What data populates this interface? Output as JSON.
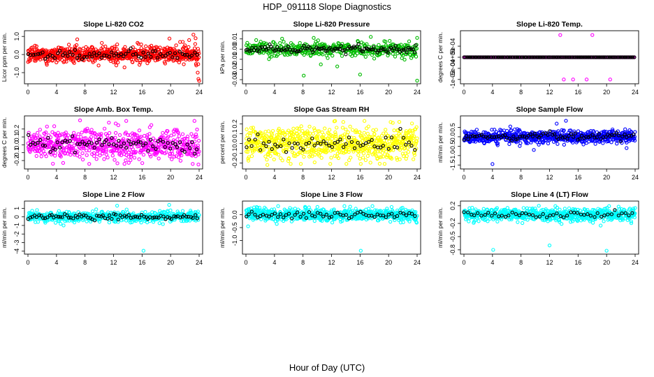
{
  "figure": {
    "title": "HDP_091118  Slope Diagnostics",
    "xlabel": "Hour of Day (UTC)"
  },
  "colors": {
    "overlay": "#000000"
  },
  "chart_data": [
    {
      "type": "scatter",
      "title": "Slope Li-820 CO2",
      "ylabel": "Licor ppm per min.",
      "color": "#ff0000",
      "xlim": [
        0,
        24
      ],
      "ylim": [
        -1.5,
        1.2
      ],
      "xticks": [
        0,
        4,
        8,
        12,
        16,
        20,
        24
      ],
      "yticks": [
        -1.0,
        0.0,
        1.0
      ],
      "ytick_labels": [
        "-1.0",
        "0.0",
        "1.0"
      ],
      "noise": {
        "sd": 0.22,
        "n": 700,
        "overlay_n": 70
      },
      "outliers": [
        [
          23.2,
          1.1
        ],
        [
          23.5,
          0.9
        ],
        [
          23.8,
          -1.0
        ],
        [
          23.9,
          -1.35
        ],
        [
          24.0,
          -1.45
        ],
        [
          23.6,
          -0.6
        ],
        [
          22.6,
          0.8
        ],
        [
          21.7,
          0.7
        ]
      ]
    },
    {
      "type": "scatter",
      "title": "Slope Li-820 Pressure",
      "ylabel": "kPa per min.",
      "color": "#00bb00",
      "xlim": [
        0,
        24
      ],
      "ylim": [
        -0.032,
        0.016
      ],
      "xticks": [
        0,
        4,
        8,
        12,
        16,
        20,
        24
      ],
      "yticks": [
        -0.03,
        -0.02,
        -0.01,
        0.0,
        0.01
      ],
      "ytick_labels": [
        "-0.03",
        "-0.02",
        "-0.01",
        "0.00",
        "0.01"
      ],
      "noise": {
        "sd": 0.0035,
        "n": 420,
        "overlay_n": 110
      },
      "outliers": [
        [
          8.1,
          -0.026
        ],
        [
          16.0,
          -0.025
        ],
        [
          24.0,
          -0.031
        ],
        [
          24.0,
          0.011
        ],
        [
          10.5,
          -0.015
        ],
        [
          12.8,
          -0.017
        ],
        [
          17.5,
          0.012
        ],
        [
          9.5,
          0.011
        ]
      ]
    },
    {
      "type": "scatter",
      "title": "Slope Li-820 Temp.",
      "ylabel": "degrees C per min.",
      "color": "#ff00ff",
      "xlim": [
        0,
        24
      ],
      "ylim": [
        -0.0011,
        0.0011
      ],
      "xticks": [
        0,
        4,
        8,
        12,
        16,
        20,
        24
      ],
      "yticks": [
        -0.001,
        -0.0005,
        0,
        0.0005
      ],
      "ytick_labels": [
        "-1e-03",
        "-5e-04",
        "0e+00",
        "5e-04"
      ],
      "noise": {
        "sd": 0.0,
        "n": 180,
        "overlay_n": 150
      },
      "outliers": [
        [
          13.5,
          0.001
        ],
        [
          18.0,
          0.001
        ],
        [
          14.0,
          -0.001
        ],
        [
          15.3,
          -0.001
        ],
        [
          20.5,
          -0.001
        ],
        [
          17.2,
          -0.001
        ]
      ]
    },
    {
      "type": "scatter",
      "title": "Slope Amb. Box Temp.",
      "ylabel": "degrees C per min.",
      "color": "#ff00ff",
      "xlim": [
        0,
        24
      ],
      "ylim": [
        -0.28,
        0.34
      ],
      "xticks": [
        0,
        4,
        8,
        12,
        16,
        20,
        24
      ],
      "yticks": [
        -0.2,
        -0.1,
        0.0,
        0.1,
        0.2
      ],
      "ytick_labels": [
        "-0.2",
        "-0.1",
        "0.0",
        "0.1",
        "0.2"
      ],
      "noise": {
        "sd": 0.09,
        "n": 650,
        "overlay_n": 70
      },
      "outliers": [
        [
          7.3,
          0.31
        ],
        [
          12.3,
          0.27
        ],
        [
          23.9,
          -0.25
        ],
        [
          3.5,
          -0.24
        ],
        [
          17.3,
          0.25
        ]
      ]
    },
    {
      "type": "scatter",
      "title": "Slope Gas Stream RH",
      "ylabel": "percent per min.",
      "color": "#ffff00",
      "xlim": [
        0,
        24
      ],
      "ylim": [
        -0.24,
        0.26
      ],
      "xticks": [
        0,
        4,
        8,
        12,
        16,
        20,
        24
      ],
      "yticks": [
        -0.2,
        -0.1,
        0.0,
        0.1,
        0.2
      ],
      "ytick_labels": [
        "-0.2",
        "-0.1",
        "0.0",
        "0.1",
        "0.2"
      ],
      "noise": {
        "sd": 0.085,
        "n": 700,
        "overlay_n": 60
      },
      "outliers": [
        [
          12.5,
          0.23
        ],
        [
          3.0,
          -0.22
        ],
        [
          16.1,
          -0.21
        ],
        [
          21.5,
          0.22
        ]
      ]
    },
    {
      "type": "scatter",
      "title": "Slope Sample Flow",
      "ylabel": "ml/min per min.",
      "color": "#0000ff",
      "xlim": [
        0,
        24
      ],
      "ylim": [
        -1.6,
        1.0
      ],
      "xticks": [
        0,
        4,
        8,
        12,
        16,
        20,
        24
      ],
      "yticks": [
        -1.5,
        -1.0,
        -0.5,
        0.0,
        0.5
      ],
      "ytick_labels": [
        "-1.5",
        "-1.0",
        "-0.5",
        "0.0",
        "0.5"
      ],
      "noise": {
        "sd": 0.17,
        "n": 700,
        "overlay_n": 80
      },
      "outliers": [
        [
          4.0,
          -1.45
        ],
        [
          14.3,
          0.85
        ],
        [
          6.5,
          0.55
        ],
        [
          9.8,
          -0.7
        ],
        [
          13.0,
          0.7
        ],
        [
          22.8,
          -0.6
        ]
      ]
    },
    {
      "type": "scatter",
      "title": "Slope Line 2 Flow",
      "ylabel": "ml/min per min.",
      "color": "#00ffff",
      "xlim": [
        0,
        24
      ],
      "ylim": [
        -4.1,
        1.6
      ],
      "xticks": [
        0,
        4,
        8,
        12,
        16,
        20,
        24
      ],
      "yticks": [
        -4,
        -3,
        -2,
        -1,
        0,
        1
      ],
      "ytick_labels": [
        "-4",
        "-3",
        "-2",
        "-1",
        "0",
        "1"
      ],
      "noise": {
        "sd": 0.3,
        "n": 600,
        "overlay_n": 80
      },
      "outliers": [
        [
          16.2,
          -3.95
        ],
        [
          12.5,
          1.3
        ],
        [
          19.8,
          1.4
        ]
      ]
    },
    {
      "type": "scatter",
      "title": "Slope Line 3 Flow",
      "ylabel": "ml/min per min.",
      "color": "#00ffff",
      "xlim": [
        0,
        24
      ],
      "ylim": [
        -1.45,
        0.45
      ],
      "xticks": [
        0,
        4,
        8,
        12,
        16,
        20,
        24
      ],
      "yticks": [
        -1.0,
        -0.5,
        0.0
      ],
      "ytick_labels": [
        "-1.0",
        "-0.5",
        "0.0"
      ],
      "noise": {
        "sd": 0.12,
        "n": 650,
        "overlay_n": 60
      },
      "outliers": [
        [
          16.1,
          -1.4
        ],
        [
          0.3,
          -0.45
        ],
        [
          1.5,
          0.3
        ],
        [
          8.3,
          0.28
        ]
      ]
    },
    {
      "type": "scatter",
      "title": "Slope Line 4 (LT) Flow",
      "ylabel": "ml/min per min.",
      "color": "#00ffff",
      "xlim": [
        0,
        24
      ],
      "ylim": [
        -0.85,
        0.26
      ],
      "xticks": [
        0,
        4,
        8,
        12,
        16,
        20,
        24
      ],
      "yticks": [
        -0.8,
        -0.5,
        -0.2,
        0.2
      ],
      "ytick_labels": [
        "-0.8",
        "-0.5",
        "-0.2",
        "0.2"
      ],
      "noise": {
        "sd": 0.07,
        "n": 650,
        "overlay_n": 50
      },
      "outliers": [
        [
          4.1,
          -0.8
        ],
        [
          12.0,
          -0.7
        ],
        [
          20.0,
          -0.82
        ],
        [
          24.0,
          0.15
        ],
        [
          10.5,
          0.2
        ]
      ]
    }
  ]
}
